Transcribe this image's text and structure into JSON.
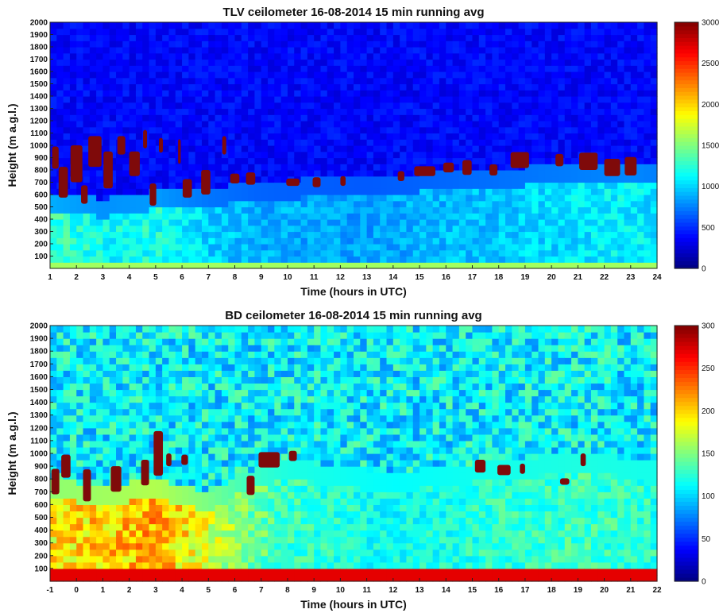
{
  "chart_data": [
    {
      "type": "heatmap",
      "title": "TLV ceilometer 16-08-2014 15 min running avg",
      "xlabel": "Time (hours in UTC)",
      "ylabel": "Height (m a.g.l.)",
      "xlim": [
        1,
        24
      ],
      "ylim": [
        0,
        2000
      ],
      "x_ticks": [
        1,
        2,
        3,
        4,
        5,
        6,
        7,
        8,
        9,
        10,
        11,
        12,
        13,
        14,
        15,
        16,
        17,
        18,
        19,
        20,
        21,
        22,
        23,
        24
      ],
      "y_ticks": [
        100,
        200,
        300,
        400,
        500,
        600,
        700,
        800,
        900,
        1000,
        1100,
        1200,
        1300,
        1400,
        1500,
        1600,
        1700,
        1800,
        1900,
        2000
      ],
      "colorbar": {
        "min": 0,
        "max": 3000,
        "ticks": [
          0,
          500,
          1000,
          1500,
          2000,
          2500,
          3000
        ],
        "colormap": "jet"
      },
      "background_level": 380,
      "boundary_layer": [
        {
          "t": 1,
          "top": 450,
          "level": 1300
        },
        {
          "t": 3,
          "top": 420,
          "level": 1150
        },
        {
          "t": 5,
          "top": 480,
          "level": 1200
        },
        {
          "t": 7,
          "top": 500,
          "level": 1000
        },
        {
          "t": 9,
          "top": 560,
          "level": 900
        },
        {
          "t": 13,
          "top": 600,
          "level": 850
        },
        {
          "t": 17,
          "top": 650,
          "level": 950
        },
        {
          "t": 21,
          "top": 700,
          "level": 1050
        },
        {
          "t": 23,
          "top": 700,
          "level": 1100
        },
        {
          "t": 24,
          "top": 700,
          "level": 1050
        }
      ],
      "surface_band": {
        "height_max": 60,
        "level": 1600
      },
      "cloud_cells": [
        {
          "t": 1.2,
          "h": 900,
          "dt": 0.25,
          "dh": 180
        },
        {
          "t": 1.5,
          "h": 700,
          "dt": 0.35,
          "dh": 250
        },
        {
          "t": 2.0,
          "h": 850,
          "dt": 0.45,
          "dh": 300
        },
        {
          "t": 2.3,
          "h": 600,
          "dt": 0.25,
          "dh": 150
        },
        {
          "t": 2.7,
          "h": 950,
          "dt": 0.5,
          "dh": 250
        },
        {
          "t": 3.2,
          "h": 800,
          "dt": 0.35,
          "dh": 300
        },
        {
          "t": 3.7,
          "h": 1000,
          "dt": 0.3,
          "dh": 150
        },
        {
          "t": 4.2,
          "h": 850,
          "dt": 0.4,
          "dh": 200
        },
        {
          "t": 4.6,
          "h": 1050,
          "dt": 0.15,
          "dh": 150
        },
        {
          "t": 4.9,
          "h": 600,
          "dt": 0.25,
          "dh": 180
        },
        {
          "t": 5.2,
          "h": 1000,
          "dt": 0.15,
          "dh": 120
        },
        {
          "t": 5.9,
          "h": 950,
          "dt": 0.1,
          "dh": 200
        },
        {
          "t": 6.2,
          "h": 650,
          "dt": 0.35,
          "dh": 150
        },
        {
          "t": 6.9,
          "h": 700,
          "dt": 0.35,
          "dh": 200
        },
        {
          "t": 7.6,
          "h": 1000,
          "dt": 0.15,
          "dh": 150
        },
        {
          "t": 8.0,
          "h": 730,
          "dt": 0.35,
          "dh": 80
        },
        {
          "t": 8.6,
          "h": 730,
          "dt": 0.35,
          "dh": 100
        },
        {
          "t": 10.2,
          "h": 700,
          "dt": 0.5,
          "dh": 60
        },
        {
          "t": 11.1,
          "h": 700,
          "dt": 0.3,
          "dh": 80
        },
        {
          "t": 12.1,
          "h": 710,
          "dt": 0.2,
          "dh": 80
        },
        {
          "t": 14.3,
          "h": 750,
          "dt": 0.25,
          "dh": 80
        },
        {
          "t": 15.2,
          "h": 790,
          "dt": 0.8,
          "dh": 80
        },
        {
          "t": 16.1,
          "h": 820,
          "dt": 0.4,
          "dh": 80
        },
        {
          "t": 16.8,
          "h": 820,
          "dt": 0.35,
          "dh": 120
        },
        {
          "t": 17.8,
          "h": 800,
          "dt": 0.3,
          "dh": 90
        },
        {
          "t": 18.8,
          "h": 880,
          "dt": 0.7,
          "dh": 130
        },
        {
          "t": 20.3,
          "h": 880,
          "dt": 0.3,
          "dh": 100
        },
        {
          "t": 21.4,
          "h": 870,
          "dt": 0.7,
          "dh": 140
        },
        {
          "t": 22.3,
          "h": 820,
          "dt": 0.6,
          "dh": 140
        },
        {
          "t": 23.0,
          "h": 830,
          "dt": 0.45,
          "dh": 150
        }
      ]
    },
    {
      "type": "heatmap",
      "title": "BD ceilometer 16-08-2014 15 min running avg",
      "xlabel": "Time (hours in UTC)",
      "ylabel": "Height (m a.g.l.)",
      "xlim": [
        -1,
        22
      ],
      "ylim": [
        0,
        2000
      ],
      "x_ticks": [
        -1,
        0,
        1,
        2,
        3,
        4,
        5,
        6,
        7,
        8,
        9,
        10,
        11,
        12,
        13,
        14,
        15,
        16,
        17,
        18,
        19,
        20,
        21,
        22
      ],
      "y_ticks": [
        100,
        200,
        300,
        400,
        500,
        600,
        700,
        800,
        900,
        1000,
        1100,
        1200,
        1300,
        1400,
        1500,
        1600,
        1700,
        1800,
        1900,
        2000
      ],
      "colorbar": {
        "min": 0,
        "max": 300,
        "ticks": [
          0,
          50,
          100,
          150,
          200,
          250,
          300
        ],
        "colormap": "jet"
      },
      "background_level": 110,
      "boundary_layer": [
        {
          "t": -1,
          "top": 650,
          "level": 190
        },
        {
          "t": 1,
          "top": 600,
          "level": 200
        },
        {
          "t": 3,
          "top": 650,
          "level": 210
        },
        {
          "t": 5,
          "top": 550,
          "level": 180
        },
        {
          "t": 6.3,
          "top": 700,
          "level": 150
        },
        {
          "t": 8,
          "top": 800,
          "level": 130
        },
        {
          "t": 12,
          "top": 700,
          "level": 115
        },
        {
          "t": 16,
          "top": 800,
          "level": 125
        },
        {
          "t": 19,
          "top": 850,
          "level": 130
        },
        {
          "t": 22,
          "top": 800,
          "level": 125
        }
      ],
      "surface_band": {
        "height_max": 80,
        "level": 270
      },
      "cloud_cells": [
        {
          "t": -0.8,
          "h": 780,
          "dt": 0.3,
          "dh": 200
        },
        {
          "t": -0.4,
          "h": 900,
          "dt": 0.35,
          "dh": 180
        },
        {
          "t": 0.4,
          "h": 750,
          "dt": 0.3,
          "dh": 250
        },
        {
          "t": 1.5,
          "h": 800,
          "dt": 0.4,
          "dh": 200
        },
        {
          "t": 2.6,
          "h": 850,
          "dt": 0.3,
          "dh": 200
        },
        {
          "t": 3.1,
          "h": 1000,
          "dt": 0.35,
          "dh": 350
        },
        {
          "t": 3.5,
          "h": 950,
          "dt": 0.2,
          "dh": 100
        },
        {
          "t": 4.1,
          "h": 950,
          "dt": 0.25,
          "dh": 80
        },
        {
          "t": 6.6,
          "h": 750,
          "dt": 0.3,
          "dh": 150
        },
        {
          "t": 7.3,
          "h": 950,
          "dt": 0.8,
          "dh": 120
        },
        {
          "t": 8.2,
          "h": 980,
          "dt": 0.3,
          "dh": 80
        },
        {
          "t": 15.3,
          "h": 900,
          "dt": 0.4,
          "dh": 100
        },
        {
          "t": 16.2,
          "h": 870,
          "dt": 0.5,
          "dh": 80
        },
        {
          "t": 16.9,
          "h": 880,
          "dt": 0.2,
          "dh": 80
        },
        {
          "t": 18.5,
          "h": 780,
          "dt": 0.35,
          "dh": 50
        },
        {
          "t": 19.2,
          "h": 950,
          "dt": 0.2,
          "dh": 100
        }
      ]
    }
  ]
}
